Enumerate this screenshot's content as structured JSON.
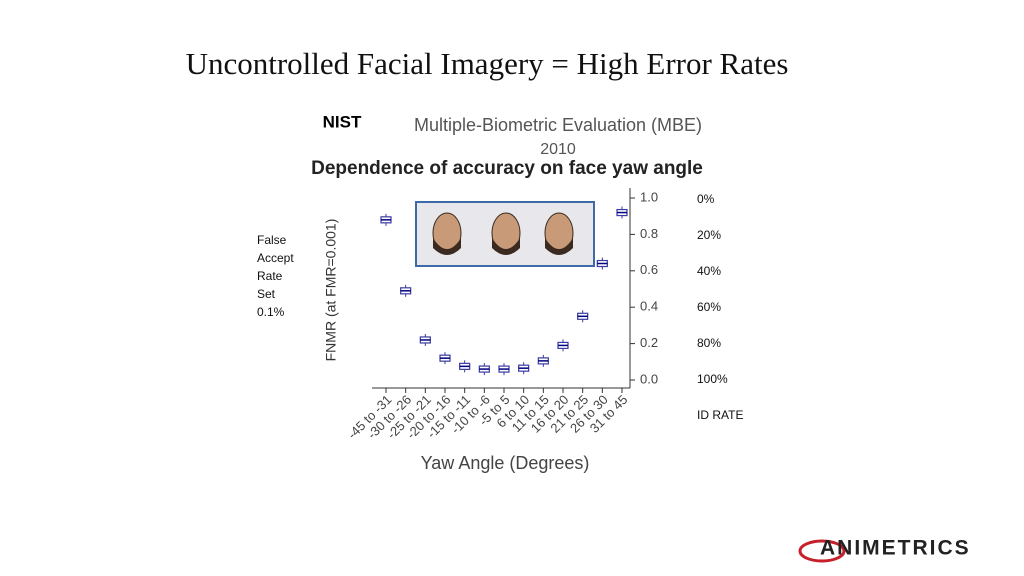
{
  "slide_title": "Uncontrolled Facial Imagery = High Error Rates",
  "source": "NIST",
  "side_note": [
    "False",
    "Accept",
    "Rate",
    "Set",
    "0.1%"
  ],
  "right_scale": [
    "0%",
    "20%",
    "40%",
    "60%",
    "80%",
    "100%",
    "ID RATE"
  ],
  "logo": "ANIMETRICS",
  "chart_data": {
    "type": "box",
    "supertitle": "Multiple-Biometric Evaluation (MBE)",
    "year": "2010",
    "title": "Dependence of accuracy on face yaw angle",
    "y_label": "FNMR (at FMR=0.001)",
    "x_label": "Yaw Angle (Degrees)",
    "categories": [
      "-45 to -31",
      "-30 to -26",
      "-25 to -21",
      "-20 to -16",
      "-15 to -11",
      "-10 to -6",
      "-5 to 5",
      "6 to 10",
      "11 to 15",
      "16 to 20",
      "21 to 25",
      "26 to 30",
      "31 to 45"
    ],
    "values": [
      0.88,
      0.49,
      0.22,
      0.12,
      0.075,
      0.06,
      0.06,
      0.065,
      0.105,
      0.19,
      0.35,
      0.64,
      0.92
    ],
    "color": "#3a3aa0",
    "ylim": [
      0,
      1
    ],
    "yticks": [
      {
        "value": 0,
        "label": "0.0"
      },
      0.2,
      0.4,
      0.6,
      0.8,
      {
        "value": 1,
        "label": "1.0"
      }
    ]
  }
}
